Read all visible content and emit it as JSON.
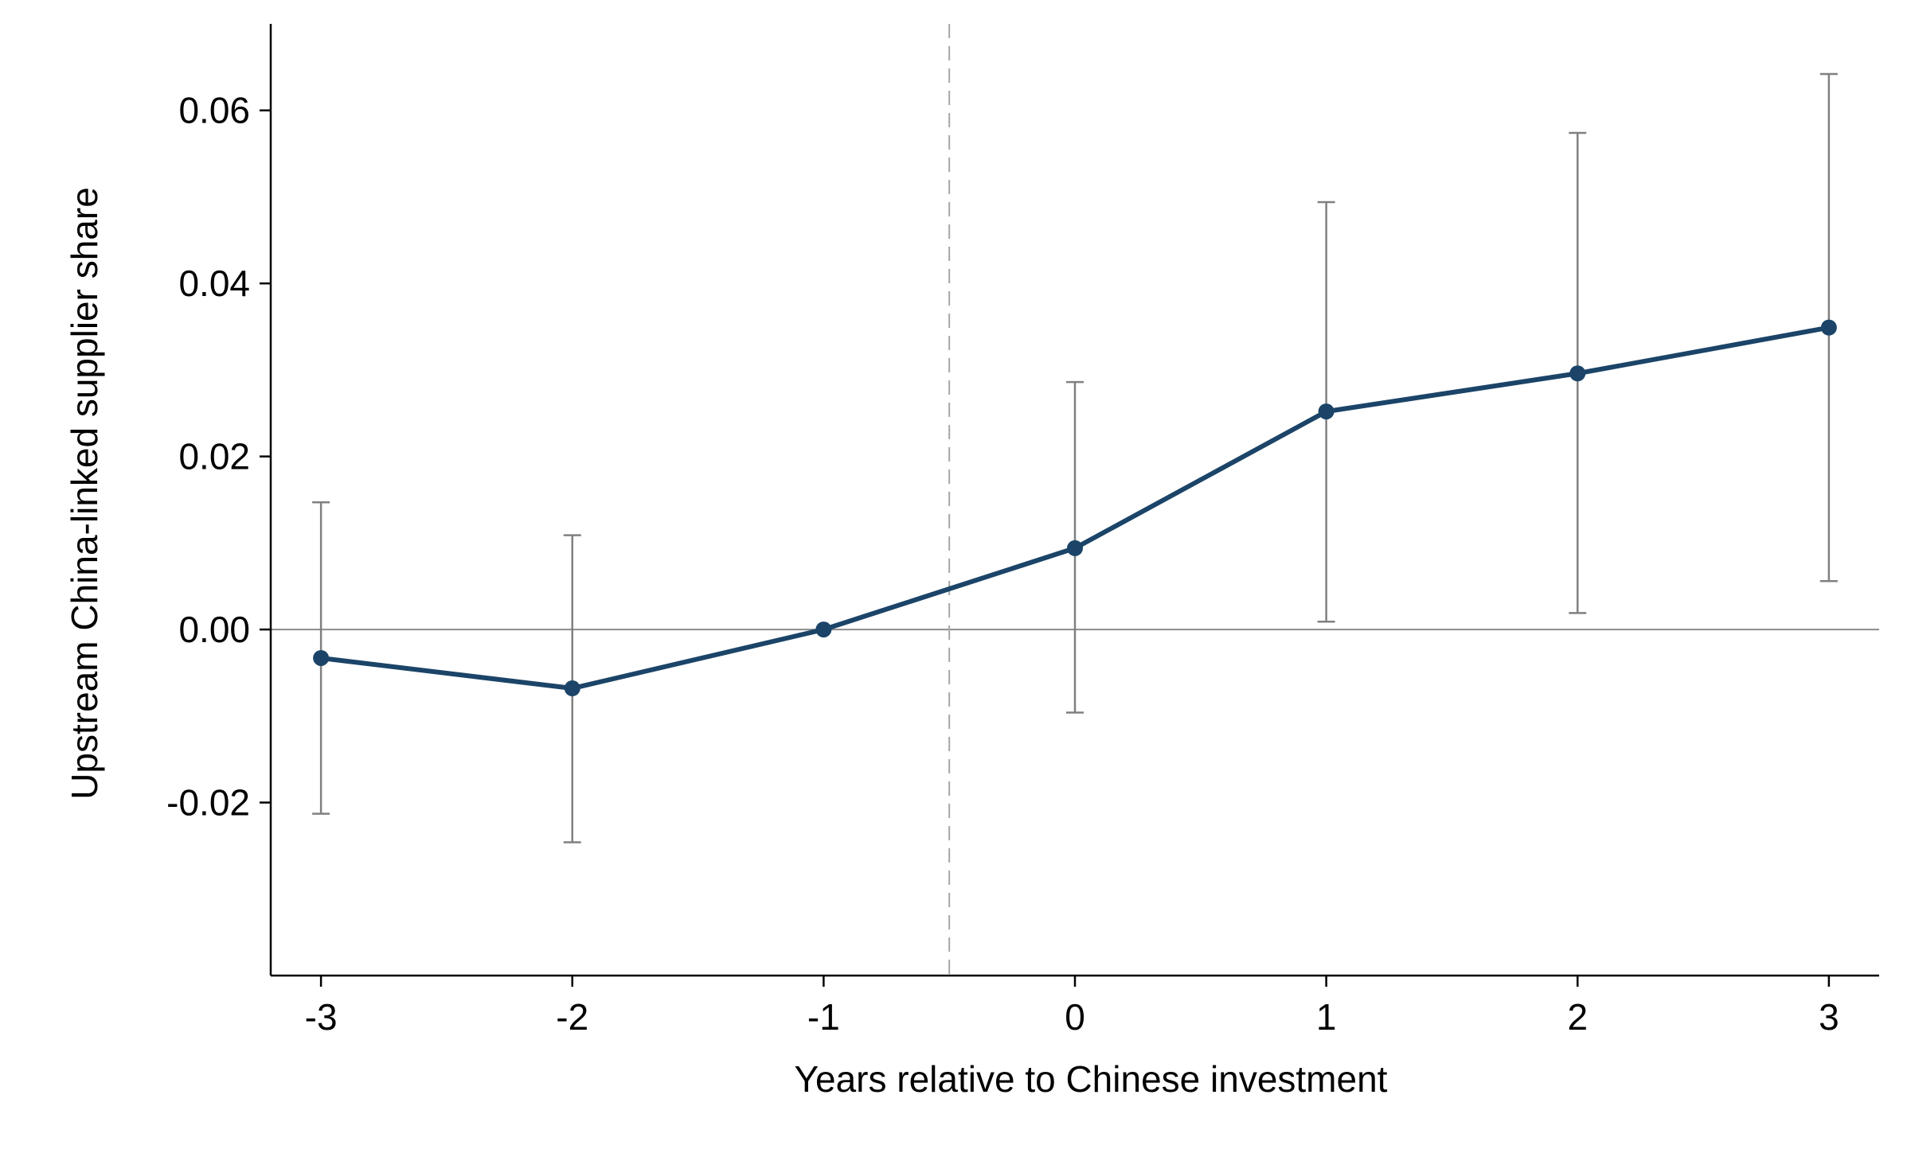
{
  "chart_data": {
    "type": "line",
    "title": "",
    "xlabel": "Years relative to Chinese investment",
    "ylabel": "Upstream China-linked supplier share",
    "x": [
      -3,
      -2,
      -1,
      0,
      1,
      2,
      3
    ],
    "x_tick_labels": [
      "-3",
      "-2",
      "-1",
      "0",
      "1",
      "2",
      "3"
    ],
    "y_ticks": [
      -0.02,
      0.0,
      0.02,
      0.04,
      0.06
    ],
    "y_tick_labels": [
      "-0.02",
      "0.00",
      "0.02",
      "0.04",
      "0.06"
    ],
    "xlim": [
      -3.2,
      3.2
    ],
    "ylim": [
      -0.04,
      0.07
    ],
    "series": [
      {
        "values": [
          -0.0033,
          -0.0068,
          0.0,
          0.0094,
          0.0252,
          0.0296,
          0.0349
        ],
        "ci_low": [
          -0.0213,
          -0.0246,
          null,
          -0.0096,
          0.0009,
          0.0019,
          0.0056
        ],
        "ci_high": [
          0.0147,
          0.0109,
          null,
          0.0286,
          0.0494,
          0.0574,
          0.0642
        ]
      }
    ],
    "reference_lines": {
      "vertical_x": -0.5,
      "horizontal_y": 0.0
    },
    "grid": false,
    "legend": "none",
    "colors": {
      "series": "#1b4468",
      "ci": "#808080",
      "reference": "#a6a6a6",
      "zero_line": "#8c8c8c",
      "axis": "#000000"
    }
  }
}
